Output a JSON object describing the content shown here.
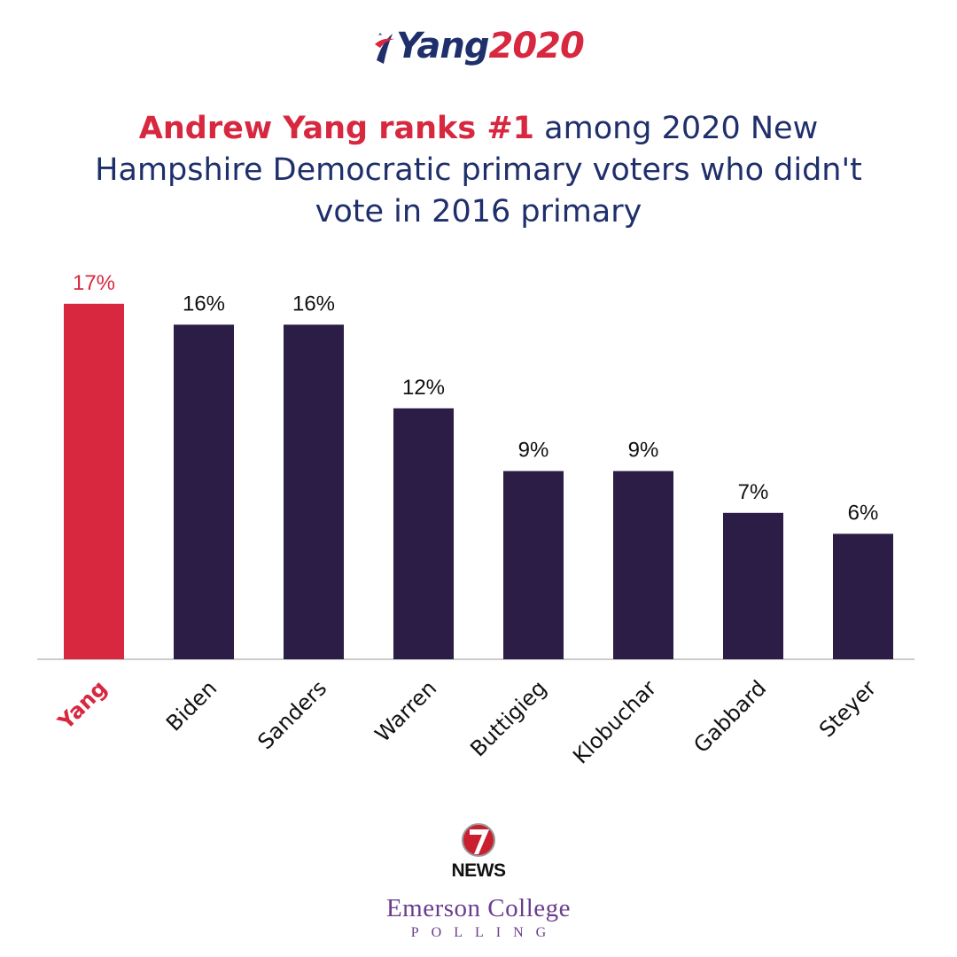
{
  "logo": {
    "name": "Yang",
    "year": "2020",
    "icon": "flag-swoosh-icon"
  },
  "headline": {
    "highlight": "Andrew Yang ranks #1",
    "rest": "among 2020 New Hampshire Democratic primary voters who didn't vote in 2016 primary"
  },
  "chart_data": {
    "type": "bar",
    "categories": [
      "Yang",
      "Biden",
      "Sanders",
      "Warren",
      "Buttigieg",
      "Klobuchar",
      "Gabbard",
      "Steyer"
    ],
    "values": [
      17,
      16,
      16,
      12,
      9,
      9,
      7,
      6
    ],
    "value_labels": [
      "17%",
      "16%",
      "16%",
      "12%",
      "9%",
      "9%",
      "7%",
      "6%"
    ],
    "ylim": [
      0,
      18
    ],
    "grid": false,
    "highlight_index": 0,
    "colors": {
      "highlight": "#d7283f",
      "bar": "#2b1d45",
      "axis": "#cccccc"
    }
  },
  "footer": {
    "news_icon": "7-news-logo-icon",
    "news_label": "NEWS",
    "org": "Emerson College",
    "org_sub": "POLLING"
  }
}
